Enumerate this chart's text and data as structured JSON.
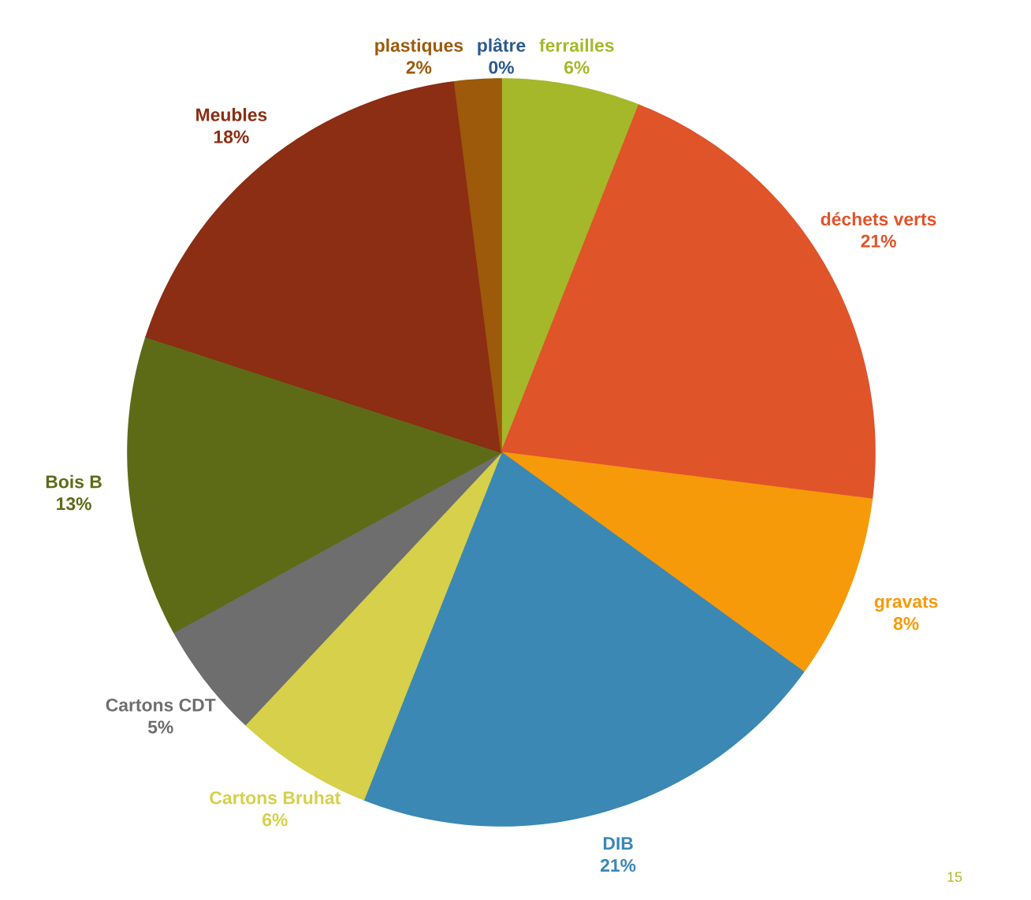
{
  "chart_data": {
    "type": "pie",
    "categories": [
      "ferrailles",
      "déchets verts",
      "gravats",
      "DIB",
      "Cartons Bruhat",
      "Cartons CDT",
      "Bois B",
      "Meubles",
      "plastiques",
      "plâtre"
    ],
    "values": [
      6,
      21,
      8,
      21,
      6,
      5,
      13,
      18,
      2,
      0
    ],
    "value_labels": [
      "6%",
      "21%",
      "8%",
      "21%",
      "6%",
      "5%",
      "13%",
      "18%",
      "2%",
      "0%"
    ],
    "colors": [
      "#a5b82a",
      "#e0542a",
      "#f79a0a",
      "#3b88b5",
      "#d6d04a",
      "#6e6e6e",
      "#5e6b16",
      "#8b2e14",
      "#9c5a0a",
      "#2a5a8a"
    ],
    "annotations": [
      "15"
    ]
  }
}
